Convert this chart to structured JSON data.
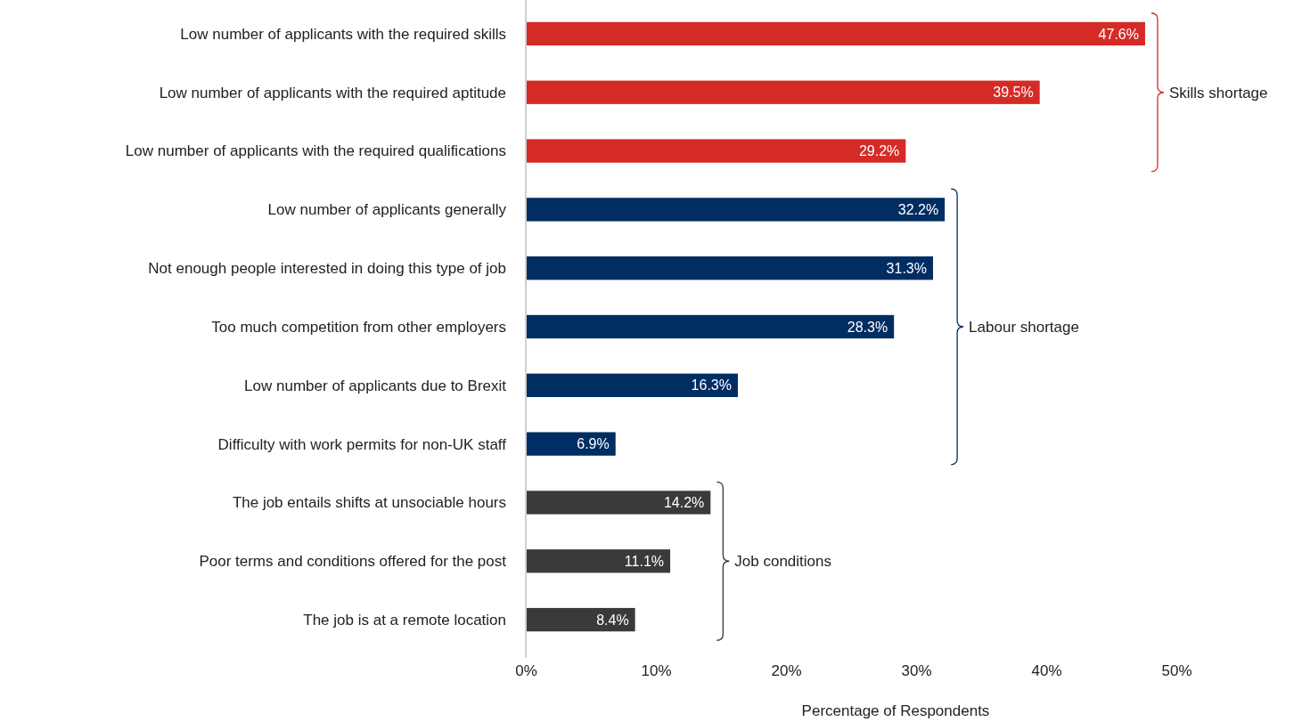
{
  "chart_data": {
    "type": "bar",
    "orientation": "horizontal",
    "xlabel": "Percentage of Respondents",
    "categories": [
      "Low number of applicants with the required skills",
      "Low number of applicants with the required aptitude",
      "Low number of applicants with the required qualifications",
      "Low number of applicants generally",
      "Not enough people interested in doing this type of job",
      "Too much competition from other employers",
      "Low number of applicants due to Brexit",
      "Difficulty with work permits for non-UK staff",
      "The job entails shifts at unsociable hours",
      "Poor terms and conditions offered for the post",
      "The job is at a remote location"
    ],
    "values": [
      47.6,
      39.5,
      29.2,
      32.2,
      31.3,
      28.3,
      16.3,
      6.9,
      14.2,
      11.1,
      8.4
    ],
    "value_labels": [
      "47.6%",
      "39.5%",
      "29.2%",
      "32.2%",
      "31.3%",
      "28.3%",
      "16.3%",
      "6.9%",
      "14.2%",
      "11.1%",
      "8.4%"
    ],
    "colors": [
      "#d52b27",
      "#d52b27",
      "#d52b27",
      "#002d62",
      "#002d62",
      "#002d62",
      "#002d62",
      "#002d62",
      "#3a3a38",
      "#3a3a38",
      "#3a3a38"
    ],
    "xlim": [
      0,
      50
    ],
    "xticks": [
      {
        "value": 0,
        "label": "0%"
      },
      {
        "value": 10,
        "label": "10%"
      },
      {
        "value": 20,
        "label": "20%"
      },
      {
        "value": 30,
        "label": "30%"
      },
      {
        "value": 40,
        "label": "40%"
      },
      {
        "value": 50,
        "label": "50%"
      }
    ],
    "grid": false,
    "annotations": [
      "Skills shortage",
      "Labour shortage",
      "Job conditions"
    ]
  }
}
